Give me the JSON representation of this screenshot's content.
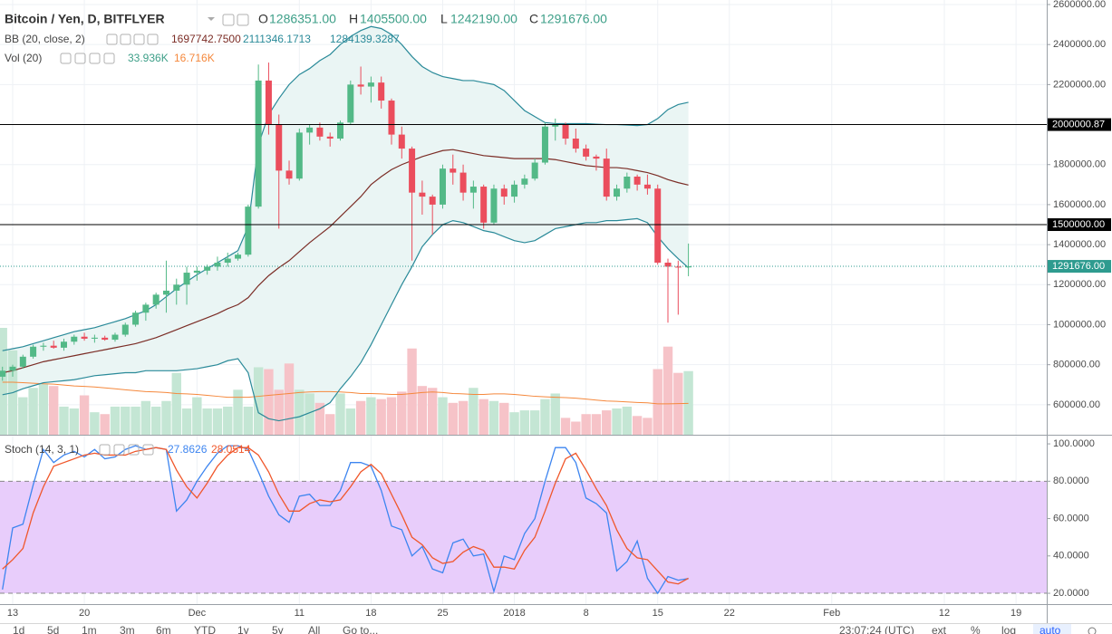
{
  "legend": {
    "title": "Bitcoin / Yen, D, BITFLYER",
    "ohlc": [
      {
        "label": "O",
        "value": "1286351.00"
      },
      {
        "label": "H",
        "value": "1405500.00"
      },
      {
        "label": "L",
        "value": "1242190.00"
      },
      {
        "label": "C",
        "value": "1291676.00"
      }
    ],
    "bb": {
      "label": "BB (20, close, 2)",
      "values": [
        "1697742.7500",
        "2111346.1713",
        "1284139.3287"
      ]
    },
    "vol": {
      "label": "Vol (20)",
      "values": [
        "33.936K",
        "16.716K"
      ]
    },
    "stoch": {
      "label": "Stoch (14, 3, 1)",
      "values": [
        "27.8626",
        "28.0514"
      ]
    }
  },
  "chart_data": [
    {
      "type": "candlestick",
      "up_color": "#53b987",
      "down_color": "#eb4d5c",
      "open": [
        740000,
        770000,
        790000,
        840000,
        890000,
        895000,
        885000,
        915000,
        940000,
        930000,
        935000,
        925000,
        950000,
        1000000,
        1060000,
        1100000,
        1150000,
        1170000,
        1200000,
        1260000,
        1270000,
        1290000,
        1310000,
        1330000,
        1350000,
        1590000,
        2220000,
        2000000,
        1770000,
        1730000,
        1960000,
        1985000,
        1940000,
        1930000,
        2010000,
        2200000,
        2190000,
        2210000,
        2120000,
        1950000,
        1880000,
        1660000,
        1640000,
        1600000,
        1780000,
        1760000,
        1660000,
        1690000,
        1510000,
        1680000,
        1640000,
        1700000,
        1730000,
        1810000,
        1990000,
        2000000,
        1930000,
        1880000,
        1840000,
        1830000,
        1640000,
        1680000,
        1740000,
        1700000,
        1680000,
        1310000,
        1290000,
        1286351
      ],
      "high": [
        790000,
        800000,
        850000,
        900000,
        910000,
        920000,
        930000,
        950000,
        960000,
        950000,
        945000,
        960000,
        1010000,
        1070000,
        1110000,
        1160000,
        1320000,
        1230000,
        1290000,
        1290000,
        1300000,
        1340000,
        1360000,
        1360000,
        1600000,
        2300000,
        2310000,
        2050000,
        1820000,
        1980000,
        2000000,
        2010000,
        1960000,
        2020000,
        2220000,
        2290000,
        2240000,
        2240000,
        2130000,
        1990000,
        1890000,
        1720000,
        1650000,
        1800000,
        1850000,
        1800000,
        1720000,
        1700000,
        1700000,
        1700000,
        1720000,
        1750000,
        1830000,
        2010000,
        2030000,
        2010000,
        1980000,
        1900000,
        1850000,
        1880000,
        1700000,
        1760000,
        1750000,
        1750000,
        1700000,
        1330000,
        1320000,
        1405500
      ],
      "low": [
        720000,
        740000,
        780000,
        830000,
        870000,
        880000,
        870000,
        900000,
        920000,
        910000,
        920000,
        915000,
        940000,
        990000,
        1020000,
        1080000,
        1060000,
        1100000,
        1100000,
        1220000,
        1250000,
        1270000,
        1290000,
        1320000,
        1340000,
        1580000,
        1950000,
        1480000,
        1700000,
        1720000,
        1900000,
        1920000,
        1890000,
        1920000,
        2000000,
        2150000,
        2110000,
        2080000,
        1900000,
        1830000,
        1320000,
        1550000,
        1450000,
        1580000,
        1700000,
        1620000,
        1580000,
        1480000,
        1500000,
        1600000,
        1610000,
        1680000,
        1720000,
        1800000,
        1920000,
        1900000,
        1860000,
        1820000,
        1770000,
        1620000,
        1620000,
        1660000,
        1670000,
        1650000,
        1300000,
        1010000,
        1050000,
        1242190
      ],
      "close": [
        770000,
        790000,
        840000,
        890000,
        895000,
        885000,
        915000,
        940000,
        930000,
        935000,
        925000,
        950000,
        1000000,
        1060000,
        1100000,
        1150000,
        1170000,
        1200000,
        1260000,
        1270000,
        1290000,
        1310000,
        1330000,
        1350000,
        1590000,
        2220000,
        2000000,
        1770000,
        1730000,
        1960000,
        1985000,
        1940000,
        1930000,
        2010000,
        2200000,
        2190000,
        2210000,
        2120000,
        1950000,
        1880000,
        1660000,
        1640000,
        1600000,
        1780000,
        1760000,
        1660000,
        1690000,
        1510000,
        1680000,
        1640000,
        1700000,
        1730000,
        1810000,
        1990000,
        2000000,
        1930000,
        1880000,
        1840000,
        1830000,
        1640000,
        1680000,
        1740000,
        1700000,
        1680000,
        1310000,
        1290000,
        1286351,
        1291676
      ],
      "series": [
        {
          "color": "#2a8a99",
          "values": [
            870000,
            880000,
            890000,
            905000,
            920000,
            935000,
            950000,
            965000,
            975000,
            985000,
            1000000,
            1015000,
            1030000,
            1050000,
            1070000,
            1100000,
            1140000,
            1180000,
            1215000,
            1250000,
            1280000,
            1310000,
            1340000,
            1370000,
            1490000,
            1900000,
            2050000,
            2130000,
            2200000,
            2250000,
            2280000,
            2320000,
            2350000,
            2400000,
            2440000,
            2470000,
            2490000,
            2480000,
            2450000,
            2400000,
            2340000,
            2290000,
            2260000,
            2240000,
            2230000,
            2220000,
            2220000,
            2210000,
            2200000,
            2170000,
            2120000,
            2070000,
            2040000,
            2010000,
            2005000,
            2005000,
            2005000,
            2005000,
            2002000,
            2000000,
            2000000,
            1998000,
            1995000,
            2000000,
            2030000,
            2075000,
            2100000,
            2111346.1713
          ]
        },
        {
          "color": "#7b2d26",
          "values": [
            760000,
            770000,
            785000,
            800000,
            815000,
            825000,
            835000,
            845000,
            855000,
            865000,
            875000,
            885000,
            895000,
            905000,
            920000,
            935000,
            955000,
            975000,
            995000,
            1015000,
            1035000,
            1055000,
            1080000,
            1100000,
            1135000,
            1195000,
            1245000,
            1285000,
            1320000,
            1365000,
            1410000,
            1450000,
            1490000,
            1540000,
            1590000,
            1640000,
            1700000,
            1740000,
            1775000,
            1800000,
            1820000,
            1840000,
            1855000,
            1870000,
            1875000,
            1865000,
            1855000,
            1845000,
            1840000,
            1835000,
            1830000,
            1830000,
            1830000,
            1830000,
            1825000,
            1815000,
            1805000,
            1795000,
            1790000,
            1785000,
            1785000,
            1780000,
            1770000,
            1760000,
            1745000,
            1725000,
            1710000,
            1697742.75
          ]
        },
        {
          "color": "#2a8a99",
          "values": [
            650000,
            660000,
            680000,
            695000,
            710000,
            715000,
            720000,
            725000,
            735000,
            745000,
            750000,
            755000,
            760000,
            760000,
            770000,
            770000,
            770000,
            770000,
            775000,
            780000,
            790000,
            800000,
            820000,
            830000,
            760000,
            560000,
            530000,
            520000,
            530000,
            540000,
            560000,
            580000,
            610000,
            680000,
            740000,
            810000,
            900000,
            1000000,
            1100000,
            1200000,
            1290000,
            1390000,
            1450000,
            1500000,
            1520000,
            1510000,
            1490000,
            1470000,
            1460000,
            1440000,
            1420000,
            1410000,
            1420000,
            1450000,
            1480000,
            1490000,
            1500000,
            1510000,
            1510000,
            1520000,
            1520000,
            1525000,
            1530000,
            1510000,
            1440000,
            1380000,
            1330000,
            1284139.3287
          ]
        }
      ],
      "band_fill": "#eaf5f4",
      "volume": [
        57000,
        45000,
        20000,
        25000,
        27000,
        26000,
        15000,
        14000,
        21000,
        12000,
        11000,
        15000,
        15000,
        15000,
        18000,
        15000,
        18000,
        33000,
        14000,
        20000,
        14000,
        14000,
        15000,
        24000,
        15000,
        36000,
        35000,
        24000,
        38000,
        24000,
        22000,
        17000,
        11000,
        22000,
        14000,
        18000,
        20000,
        19000,
        20000,
        23000,
        46000,
        26000,
        25000,
        20000,
        17000,
        18000,
        25000,
        19000,
        18000,
        17000,
        12000,
        13000,
        13000,
        19000,
        22000,
        9000,
        7000,
        11000,
        11000,
        13000,
        14000,
        15000,
        10000,
        9000,
        35000,
        47000,
        33000,
        33936
      ],
      "volume_up_color": "#c4e6d4",
      "volume_down_color": "#f6c3c8",
      "volume_ma": {
        "color": "#f5883c",
        "values": [
          28000,
          28000,
          27800,
          27500,
          27200,
          27000,
          26500,
          26000,
          25800,
          25500,
          25000,
          24500,
          24000,
          23500,
          23000,
          22800,
          22500,
          22000,
          21800,
          21500,
          21000,
          20500,
          20000,
          20000,
          20000,
          20500,
          21000,
          21500,
          22000,
          22500,
          22800,
          23000,
          23000,
          22800,
          22500,
          22000,
          22000,
          21800,
          21500,
          21500,
          22000,
          22500,
          22800,
          22500,
          22000,
          21800,
          21500,
          21500,
          21800,
          21800,
          21500,
          21000,
          20500,
          20200,
          20000,
          19800,
          19500,
          19000,
          18500,
          18000,
          17800,
          17500,
          17200,
          17000,
          16500,
          16500,
          16600,
          16716
        ]
      },
      "xlim": [
        -0.24,
        102
      ],
      "xticks": [
        {
          "value": 1,
          "label": "13"
        },
        {
          "value": 8,
          "label": "20"
        },
        {
          "value": 19,
          "label": "Dec"
        },
        {
          "value": 29,
          "label": "11"
        },
        {
          "value": 36,
          "label": "18"
        },
        {
          "value": 43,
          "label": "25"
        },
        {
          "value": 50,
          "label": "2018"
        },
        {
          "value": 57,
          "label": "8"
        },
        {
          "value": 64,
          "label": "15"
        },
        {
          "value": 71,
          "label": "22"
        },
        {
          "value": 81,
          "label": "Feb"
        },
        {
          "value": 92,
          "label": "12"
        },
        {
          "value": 99,
          "label": "19"
        }
      ],
      "ylim": [
        450000,
        2622600
      ],
      "yticks": [
        {
          "value": 2600000,
          "label": "2600000.00"
        },
        {
          "value": 2400000,
          "label": "2400000.00"
        },
        {
          "value": 2200000,
          "label": "2200000.00"
        },
        {
          "value": 1800000,
          "label": "1800000.00"
        },
        {
          "value": 1600000,
          "label": "1600000.00"
        },
        {
          "value": 1400000,
          "label": "1400000.00"
        },
        {
          "value": 1200000,
          "label": "1200000.00"
        },
        {
          "value": 1000000,
          "label": "1000000.00"
        },
        {
          "value": 800000,
          "label": "800000.00"
        },
        {
          "value": 600000,
          "label": "600000.00"
        }
      ],
      "grid": true,
      "price_lines": [
        {
          "value": 2000000.87,
          "label": "2000000.87",
          "color": "#000000",
          "style": "solid"
        },
        {
          "value": 1500000,
          "label": "1500000.00",
          "color": "#000000",
          "style": "solid"
        },
        {
          "value": 1291676,
          "label": "1291676.00",
          "color": "#2e9b8f",
          "style": "dotted"
        }
      ]
    },
    {
      "type": "line",
      "series": [
        {
          "color": "#3d85f0",
          "values": [
            22,
            55,
            57,
            78,
            97,
            90,
            94,
            96,
            93,
            97,
            92,
            93,
            97,
            99,
            97,
            98,
            97,
            64,
            70,
            80,
            88,
            95,
            99,
            99,
            97,
            85,
            72,
            62,
            58,
            72,
            73,
            67,
            67,
            75,
            90,
            90,
            88,
            75,
            56,
            54,
            40,
            45,
            33,
            31,
            47,
            49,
            40,
            41,
            21,
            40,
            38,
            52,
            60,
            80,
            98,
            98,
            90,
            71,
            68,
            63,
            32,
            37,
            48,
            28,
            20,
            29,
            27,
            27.8626
          ]
        },
        {
          "color": "#f0572b",
          "values": [
            33,
            38,
            44,
            63,
            77,
            88,
            90,
            92,
            94,
            95,
            94,
            94,
            94,
            96,
            97,
            98,
            97,
            86,
            77,
            71,
            79,
            88,
            94,
            98,
            98,
            94,
            85,
            73,
            64,
            64,
            68,
            70,
            69,
            70,
            77,
            85,
            89,
            84,
            73,
            62,
            50,
            46,
            39,
            36,
            37,
            42,
            45,
            43,
            34,
            34,
            33,
            43,
            50,
            64,
            79,
            92,
            95,
            86,
            76,
            67,
            54,
            44,
            39,
            38,
            32,
            26,
            25,
            28.0514
          ]
        }
      ],
      "band": [
        20,
        80
      ],
      "band_color": "#e8cdfb",
      "ylim": [
        14.2,
        104.4
      ],
      "yticks": [
        {
          "value": 100,
          "label": "100.0000"
        },
        {
          "value": 80,
          "label": "80.0000"
        },
        {
          "value": 60,
          "label": "60.0000"
        },
        {
          "value": 40,
          "label": "40.0000"
        },
        {
          "value": 20,
          "label": "20.0000"
        }
      ]
    }
  ],
  "toolbar": {
    "ranges": [
      "1d",
      "5d",
      "1m",
      "3m",
      "6m",
      "YTD",
      "1y",
      "5y",
      "All",
      "Go to..."
    ],
    "time": "23:07:24 (UTC)",
    "options": [
      "ext",
      "%",
      "log",
      "auto"
    ]
  }
}
